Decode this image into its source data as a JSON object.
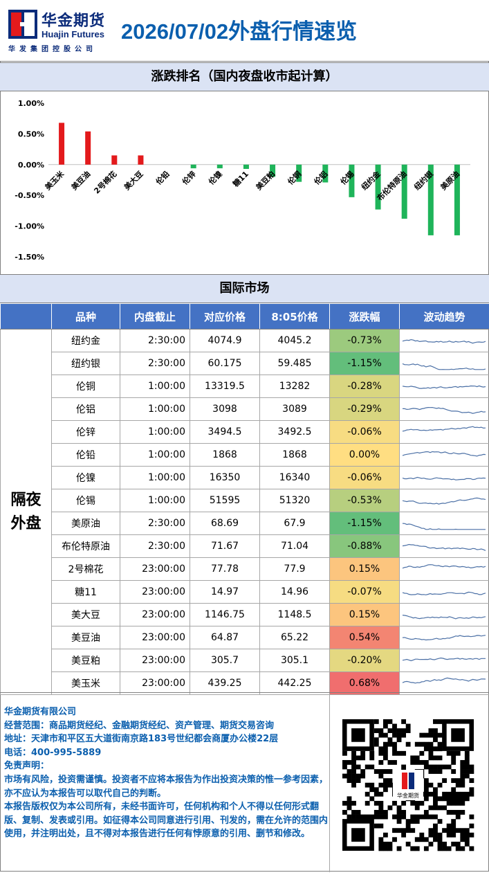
{
  "header": {
    "logo_cn": "华金期货",
    "logo_en": "Huajin Futures",
    "logo_sub": "华发集团控股公司",
    "title": "2026/07/02外盘行情速览"
  },
  "ranking": {
    "title": "涨跌排名（国内夜盘收市起计算）"
  },
  "chart_data": {
    "type": "bar",
    "categories": [
      "美玉米",
      "美豆油",
      "2号棉花",
      "美大豆",
      "伦铅",
      "伦锌",
      "伦镍",
      "糖11",
      "美豆粕",
      "伦铜",
      "伦铝",
      "伦锡",
      "纽约金",
      "布伦特原油",
      "纽约银",
      "美原油"
    ],
    "values": [
      0.68,
      0.54,
      0.15,
      0.15,
      0.0,
      -0.06,
      -0.06,
      -0.07,
      -0.2,
      -0.28,
      -0.29,
      -0.53,
      -0.73,
      -0.88,
      -1.15,
      -1.15
    ],
    "yticks": [
      "1.00%",
      "0.50%",
      "0.00%",
      "-0.50%",
      "-1.00%",
      "-1.50%"
    ],
    "ylim": [
      -1.5,
      1.0
    ],
    "colors": {
      "up": "#e31a1c",
      "down": "#1fb45a"
    }
  },
  "intl": {
    "title": "国际市场",
    "columns": [
      "品种",
      "内盘截止",
      "对应价格",
      "8:05价格",
      "涨跌幅",
      "波动趋势"
    ],
    "group_label_1": "隔夜",
    "group_label_2": "外盘",
    "rows": [
      {
        "name": "纽约金",
        "close": "2:30:00",
        "ref": "4074.9",
        "price": "4045.2",
        "chg": "-0.73%",
        "v": -0.73
      },
      {
        "name": "纽约银",
        "close": "2:30:00",
        "ref": "60.175",
        "price": "59.485",
        "chg": "-1.15%",
        "v": -1.15
      },
      {
        "name": "伦铜",
        "close": "1:00:00",
        "ref": "13319.5",
        "price": "13282",
        "chg": "-0.28%",
        "v": -0.28
      },
      {
        "name": "伦铝",
        "close": "1:00:00",
        "ref": "3098",
        "price": "3089",
        "chg": "-0.29%",
        "v": -0.29
      },
      {
        "name": "伦锌",
        "close": "1:00:00",
        "ref": "3494.5",
        "price": "3492.5",
        "chg": "-0.06%",
        "v": -0.06
      },
      {
        "name": "伦铅",
        "close": "1:00:00",
        "ref": "1868",
        "price": "1868",
        "chg": "0.00%",
        "v": 0.0
      },
      {
        "name": "伦镍",
        "close": "1:00:00",
        "ref": "16350",
        "price": "16340",
        "chg": "-0.06%",
        "v": -0.06
      },
      {
        "name": "伦锡",
        "close": "1:00:00",
        "ref": "51595",
        "price": "51320",
        "chg": "-0.53%",
        "v": -0.53
      },
      {
        "name": "美原油",
        "close": "2:30:00",
        "ref": "68.69",
        "price": "67.9",
        "chg": "-1.15%",
        "v": -1.15
      },
      {
        "name": "布伦特原油",
        "close": "2:30:00",
        "ref": "71.67",
        "price": "71.04",
        "chg": "-0.88%",
        "v": -0.88
      },
      {
        "name": "2号棉花",
        "close": "23:00:00",
        "ref": "77.78",
        "price": "77.9",
        "chg": "0.15%",
        "v": 0.15
      },
      {
        "name": "糖11",
        "close": "23:00:00",
        "ref": "14.97",
        "price": "14.96",
        "chg": "-0.07%",
        "v": -0.07
      },
      {
        "name": "美大豆",
        "close": "23:00:00",
        "ref": "1146.75",
        "price": "1148.5",
        "chg": "0.15%",
        "v": 0.15
      },
      {
        "name": "美豆油",
        "close": "23:00:00",
        "ref": "64.87",
        "price": "65.22",
        "chg": "0.54%",
        "v": 0.54
      },
      {
        "name": "美豆粕",
        "close": "23:00:00",
        "ref": "305.7",
        "price": "305.1",
        "chg": "-0.20%",
        "v": -0.2
      },
      {
        "name": "美玉米",
        "close": "23:00:00",
        "ref": "439.25",
        "price": "442.25",
        "chg": "0.68%",
        "v": 0.68
      }
    ]
  },
  "footer": {
    "company": "华金期货有限公司",
    "scope": " 经营范围：商品期货经纪、金融期货经纪、资产管理、期货交易咨询",
    "address": "  地址：天津市和平区五大道街南京路183号世纪都会商厦办公楼22层",
    "phone": "  电话：400-995-5889",
    "disclaimer_title": " 免责声明：",
    "disclaimer_1": "   市场有风险，投资需谨慎。投资者不应将本报告为作出投资决策的惟一参考因素，亦不应认为本报告可以取代自己的判断。",
    "disclaimer_2": "   本报告版权仅为本公司所有，未经书面许可，任何机构和个人不得以任何形式翻版、复制、发表或引用。如征得本公司同意进行引用、刊发的，需在允许的范围内使用，并注明出处，且不得对本报告进行任何有悖原意的引用、删节和修改。",
    "qr_logo_text": "华金期货"
  }
}
